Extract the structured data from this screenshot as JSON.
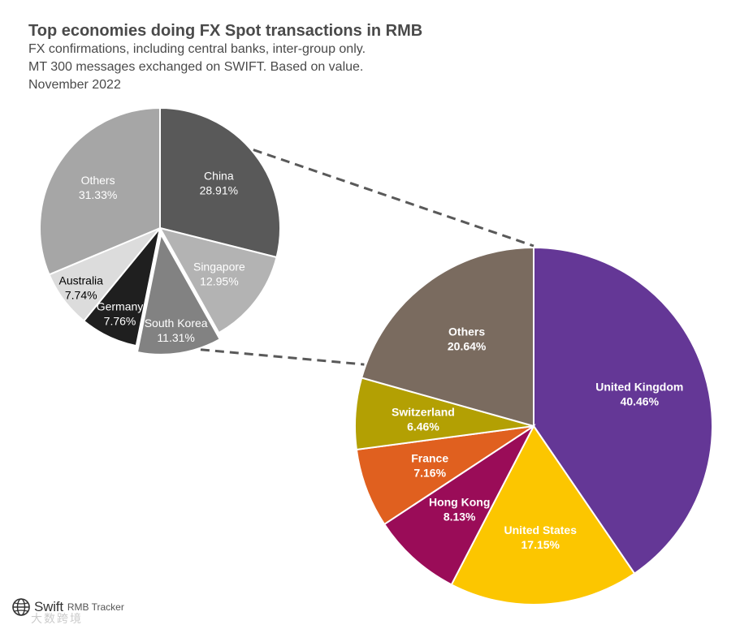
{
  "header": {
    "title": "Top economies doing FX Spot transactions in RMB",
    "subtitle_lines": [
      "FX confirmations, including central banks, inter-group only.",
      "MT 300 messages exchanged on SWIFT. Based on value.",
      "November 2022"
    ]
  },
  "footer": {
    "brand": "Swift",
    "product": "RMB Tracker",
    "watermark": "大数跨境"
  },
  "chart_data": [
    {
      "type": "pie",
      "title": "",
      "start_angle_deg": 0,
      "direction": "clockwise",
      "slices": [
        {
          "label": "China",
          "value_label": "28.91%",
          "value": 28.91,
          "color": "#595959",
          "text_color": "#ffffff"
        },
        {
          "label": "Singapore",
          "value_label": "12.95%",
          "value": 12.95,
          "color": "#b3b3b3",
          "text_color": "#ffffff"
        },
        {
          "label": "South Korea",
          "value_label": "11.31%",
          "value": 11.31,
          "color": "#828282",
          "text_color": "#ffffff",
          "exploded": true
        },
        {
          "label": "Germany",
          "value_label": "7.76%",
          "value": 7.76,
          "color": "#1f1f1f",
          "text_color": "#ffffff"
        },
        {
          "label": "Australia",
          "value_label": "7.74%",
          "value": 7.74,
          "color": "#dcdcdc",
          "text_color": "#000000"
        },
        {
          "label": "Others",
          "value_label": "31.33%",
          "value": 31.33,
          "color": "#a6a6a6",
          "text_color": "#ffffff"
        }
      ]
    },
    {
      "type": "pie",
      "title": "",
      "start_angle_deg": 0,
      "direction": "clockwise",
      "detail_of": "South Korea",
      "slices": [
        {
          "label": "United Kingdom",
          "value_label": "40.46%",
          "value": 40.46,
          "color": "#643796",
          "text_color": "#ffffff"
        },
        {
          "label": "United States",
          "value_label": "17.15%",
          "value": 17.15,
          "color": "#fcc600",
          "text_color": "#ffffff"
        },
        {
          "label": "Hong Kong",
          "value_label": "8.13%",
          "value": 8.13,
          "color": "#9a0c58",
          "text_color": "#ffffff"
        },
        {
          "label": "France",
          "value_label": "7.16%",
          "value": 7.16,
          "color": "#e0601f",
          "text_color": "#ffffff"
        },
        {
          "label": "Switzerland",
          "value_label": "6.46%",
          "value": 6.46,
          "color": "#b3a003",
          "text_color": "#ffffff"
        },
        {
          "label": "Others",
          "value_label": "20.64%",
          "value": 20.64,
          "color": "#7a6b5f",
          "text_color": "#ffffff"
        }
      ]
    }
  ]
}
